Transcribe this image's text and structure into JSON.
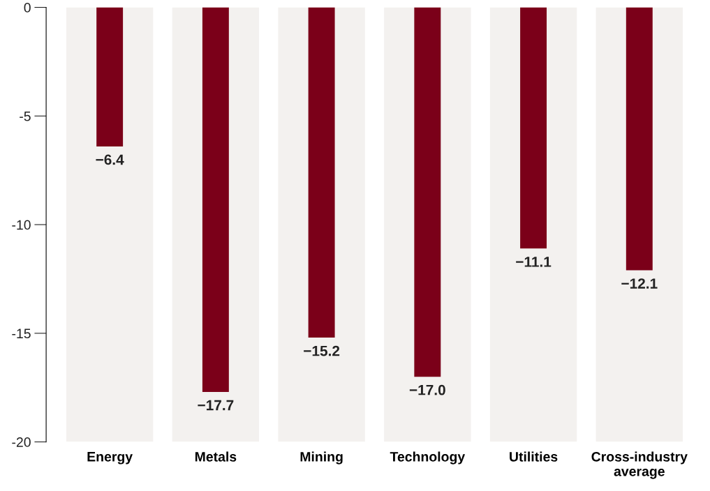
{
  "chart_data": {
    "type": "bar",
    "categories": [
      "Energy",
      "Metals",
      "Mining",
      "Technology",
      "Utilities",
      "Cross-industry\naverage"
    ],
    "series": [
      {
        "color": "#f3f1ef",
        "values": [
          -20,
          -20,
          -20,
          -20,
          -20,
          -20
        ]
      },
      {
        "color": "#7b0019",
        "values": [
          -6.4,
          -17.7,
          -15.2,
          -17.0,
          -11.1,
          -12.1
        ],
        "value_labels": [
          "−6.4",
          "−17.7",
          "−15.2",
          "−17.0",
          "−11.1",
          "−12.1"
        ]
      }
    ],
    "ylim": [
      -20,
      0
    ],
    "yticks": [
      0,
      -5,
      -10,
      -15,
      -20
    ],
    "grid": false
  }
}
